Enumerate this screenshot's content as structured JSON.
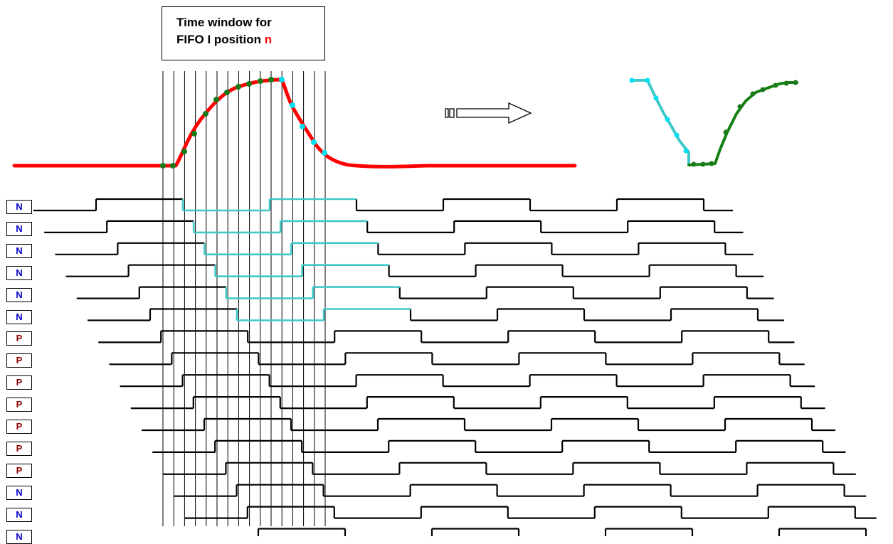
{
  "title": {
    "line1": "Time window for",
    "line2_prefix": "FIFO I position",
    "line2_accent": "n"
  },
  "colors": {
    "signal": "#ff0000",
    "sample_point": "#1a7a1a",
    "sample_point_falling": "#00e0f0",
    "waveform_default": "#000000",
    "waveform_highlight_n": "#40c8c8",
    "waveform_highlight_p": "#138013",
    "label_n": "#0000cc",
    "label_p": "#8b0000",
    "window_lines": "#000000"
  },
  "channels": [
    {
      "label": "N"
    },
    {
      "label": "N"
    },
    {
      "label": "N"
    },
    {
      "label": "N"
    },
    {
      "label": "N"
    },
    {
      "label": "N"
    },
    {
      "label": "P"
    },
    {
      "label": "P"
    },
    {
      "label": "P"
    },
    {
      "label": "P"
    },
    {
      "label": "P"
    },
    {
      "label": "P"
    },
    {
      "label": "P"
    },
    {
      "label": "N"
    },
    {
      "label": "N"
    },
    {
      "label": "N"
    }
  ],
  "arrow_icon": "right-arrow-icon"
}
